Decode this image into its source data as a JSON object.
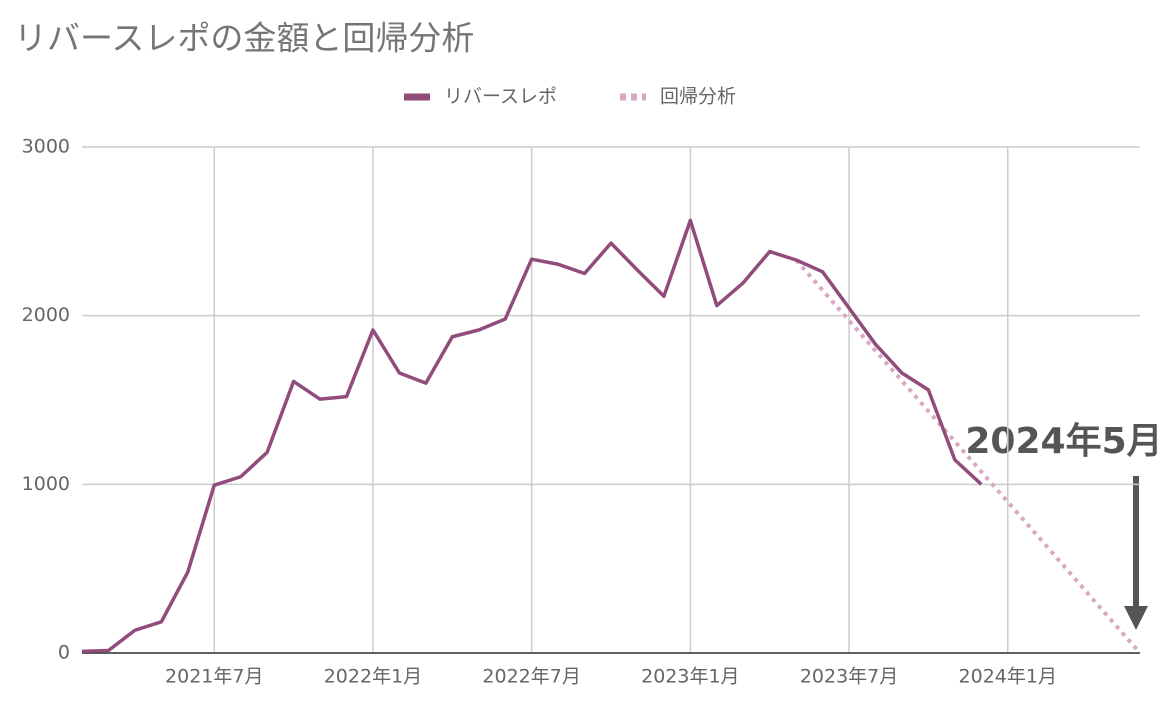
{
  "chart_data": {
    "type": "line",
    "title": "リバースレポの金額と回帰分析",
    "categories": [
      null,
      null,
      null,
      null,
      null,
      "2021年7月",
      null,
      null,
      null,
      null,
      null,
      "2022年1月",
      null,
      null,
      null,
      null,
      null,
      "2022年7月",
      null,
      null,
      null,
      null,
      null,
      "2023年1月",
      null,
      null,
      null,
      null,
      null,
      "2023年7月",
      null,
      null,
      null,
      null,
      null,
      "2024年1月",
      null,
      null,
      null,
      null,
      null
    ],
    "series": [
      {
        "name": "リバースレポ",
        "color": "#914c7b",
        "style": "solid",
        "values": [
          10,
          15,
          135,
          185,
          480,
          995,
          1045,
          1190,
          1610,
          1505,
          1520,
          1915,
          1660,
          1600,
          1875,
          1915,
          1980,
          2335,
          2305,
          2250,
          2430,
          2270,
          2115,
          2565,
          2060,
          2195,
          2380,
          2330,
          2260,
          2045,
          1830,
          1660,
          1560,
          1145,
          1000,
          null,
          null,
          null,
          null,
          null,
          null
        ]
      },
      {
        "name": "回帰分析",
        "color": "#d9a9c4",
        "style": "dotted",
        "values": [
          null,
          null,
          null,
          null,
          null,
          null,
          null,
          null,
          null,
          null,
          null,
          null,
          null,
          null,
          null,
          null,
          null,
          null,
          null,
          null,
          null,
          null,
          null,
          null,
          null,
          null,
          null,
          2330,
          2151,
          1971,
          1792,
          1613,
          1434,
          1254,
          1075,
          896,
          717,
          538,
          358,
          179,
          0
        ]
      }
    ],
    "ylim": [
      0,
      3000
    ],
    "yticks": [
      0,
      1000,
      2000,
      3000
    ],
    "grid": true,
    "legend": "top",
    "annotation": "2024年5月"
  }
}
